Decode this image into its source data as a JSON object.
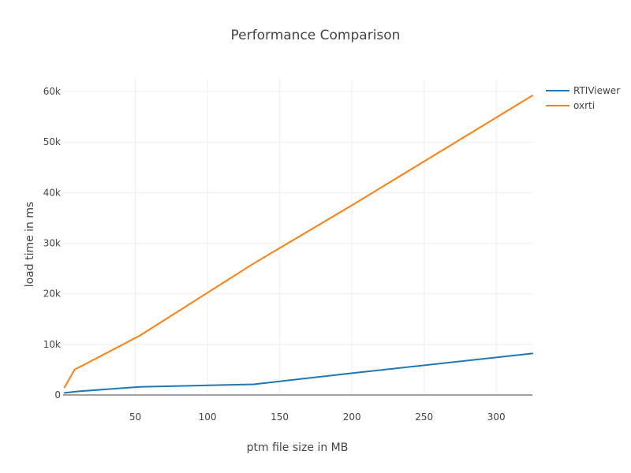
{
  "chart_data": {
    "type": "line",
    "title": "Performance Comparison",
    "xlabel": "ptm file size in MB",
    "ylabel": "load time in ms",
    "xlim": [
      0,
      325
    ],
    "ylim": [
      0,
      62500
    ],
    "xticks": [
      50,
      100,
      150,
      200,
      250,
      300
    ],
    "yticks": [
      0,
      10000,
      20000,
      30000,
      40000,
      50000,
      60000
    ],
    "ytick_labels": [
      "0",
      "10k",
      "20k",
      "30k",
      "40k",
      "50k",
      "60k"
    ],
    "grid": true,
    "legend_position": "top-right",
    "series": [
      {
        "name": "RTIViewer",
        "color": "#1f77b4",
        "x": [
          1,
          10,
          53,
          132,
          200,
          325
        ],
        "y": [
          400,
          700,
          1600,
          2100,
          4300,
          8200
        ]
      },
      {
        "name": "oxrti",
        "color": "#ff7f0e",
        "x": [
          1,
          8,
          53,
          132,
          200,
          325
        ],
        "y": [
          1500,
          5000,
          11700,
          26000,
          37500,
          59200
        ]
      }
    ]
  }
}
